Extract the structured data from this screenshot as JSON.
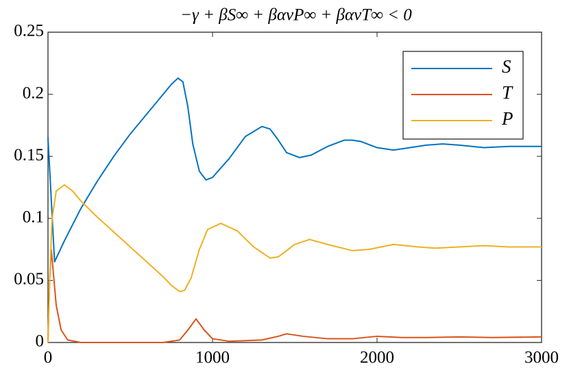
{
  "chart_data": {
    "type": "line",
    "title": "−γ + βS∞ + βανP∞ + βανT∞ < 0",
    "xlim": [
      0,
      3000
    ],
    "xticks": [
      0,
      1000,
      2000,
      3000
    ],
    "ylim": [
      0,
      0.25
    ],
    "yticks": [
      0,
      0.05,
      0.1,
      0.15,
      0.2,
      0.25
    ],
    "legend": "upper right",
    "series": [
      {
        "name": "S",
        "color": "#0072BD",
        "x": [
          0,
          40,
          100,
          200,
          300,
          400,
          500,
          600,
          700,
          750,
          790,
          820,
          850,
          880,
          920,
          960,
          1000,
          1100,
          1200,
          1300,
          1350,
          1400,
          1450,
          1530,
          1600,
          1700,
          1800,
          1850,
          1900,
          2000,
          2100,
          2200,
          2300,
          2400,
          2500,
          2650,
          2800,
          3000
        ],
        "values": [
          0.165,
          0.065,
          0.082,
          0.108,
          0.13,
          0.15,
          0.168,
          0.184,
          0.2,
          0.208,
          0.213,
          0.21,
          0.19,
          0.16,
          0.138,
          0.131,
          0.133,
          0.148,
          0.166,
          0.174,
          0.172,
          0.163,
          0.153,
          0.149,
          0.151,
          0.158,
          0.163,
          0.163,
          0.162,
          0.157,
          0.155,
          0.157,
          0.159,
          0.16,
          0.159,
          0.157,
          0.158,
          0.158
        ]
      },
      {
        "name": "T",
        "color": "#D95319",
        "x": [
          0,
          10,
          20,
          30,
          50,
          80,
          120,
          200,
          700,
          800,
          850,
          900,
          950,
          1000,
          1100,
          1300,
          1400,
          1450,
          1550,
          1700,
          1850,
          2000,
          2150,
          2300,
          2500,
          2700,
          3000
        ],
        "values": [
          0,
          0.05,
          0.075,
          0.06,
          0.03,
          0.01,
          0.002,
          0,
          0,
          0.002,
          0.01,
          0.019,
          0.01,
          0.003,
          0.001,
          0.002,
          0.005,
          0.007,
          0.005,
          0.003,
          0.003,
          0.005,
          0.004,
          0.004,
          0.0045,
          0.004,
          0.0045
        ]
      },
      {
        "name": "P",
        "color": "#EDB120",
        "x": [
          0,
          10,
          25,
          50,
          100,
          150,
          200,
          300,
          400,
          500,
          600,
          700,
          750,
          800,
          830,
          870,
          920,
          970,
          1050,
          1150,
          1250,
          1350,
          1400,
          1500,
          1590,
          1700,
          1850,
          1950,
          2100,
          2250,
          2350,
          2500,
          2650,
          2800,
          3000
        ],
        "values": [
          0,
          0.05,
          0.1,
          0.122,
          0.127,
          0.122,
          0.114,
          0.101,
          0.089,
          0.077,
          0.065,
          0.053,
          0.046,
          0.041,
          0.042,
          0.052,
          0.075,
          0.091,
          0.096,
          0.09,
          0.077,
          0.068,
          0.069,
          0.079,
          0.083,
          0.079,
          0.074,
          0.075,
          0.079,
          0.077,
          0.076,
          0.077,
          0.078,
          0.077,
          0.077
        ]
      }
    ]
  }
}
